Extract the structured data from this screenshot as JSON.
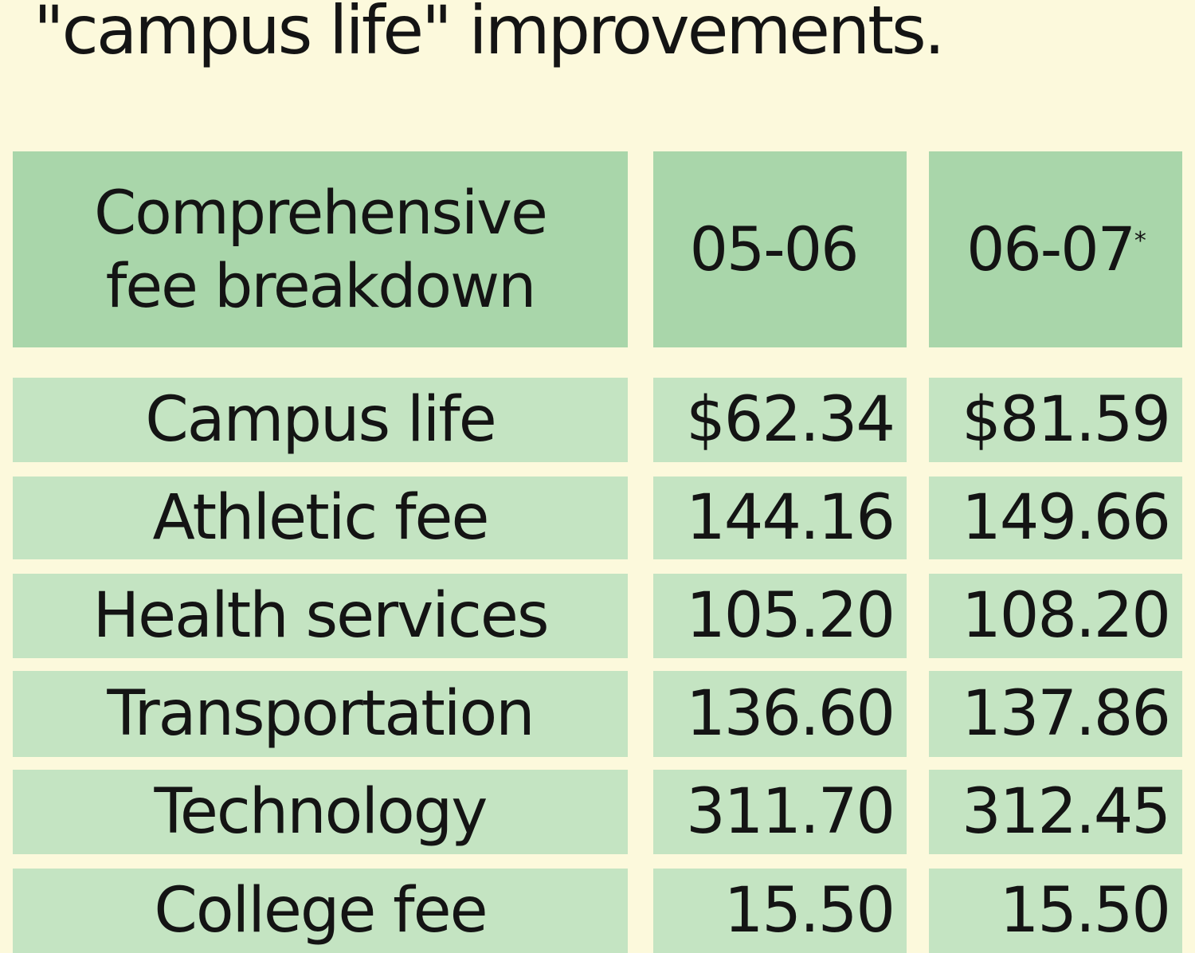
{
  "intro_text": "\"campus life\" improvements.",
  "table": {
    "header": {
      "label": "Comprehensive fee breakdown",
      "label_line1": "Comprehensive",
      "label_line2": "fee breakdown",
      "col1": "05-06",
      "col2": "06-07",
      "col2_mark": "*"
    },
    "rows": [
      {
        "label": "Campus life",
        "v1": "$62.34",
        "v2": "$81.59"
      },
      {
        "label": "Athletic fee",
        "v1": "144.16",
        "v2": "149.66"
      },
      {
        "label": "Health services",
        "v1": "105.20",
        "v2": "108.20"
      },
      {
        "label": "Transportation",
        "v1": "136.60",
        "v2": "137.86"
      },
      {
        "label": "Technology",
        "v1": "311.70",
        "v2": "312.45"
      },
      {
        "label": "College fee",
        "v1": "15.50",
        "v2": "15.50"
      }
    ]
  },
  "colors": {
    "background": "#fcf9dc",
    "header": "#a9d6aa",
    "row": "#c4e4c2"
  }
}
